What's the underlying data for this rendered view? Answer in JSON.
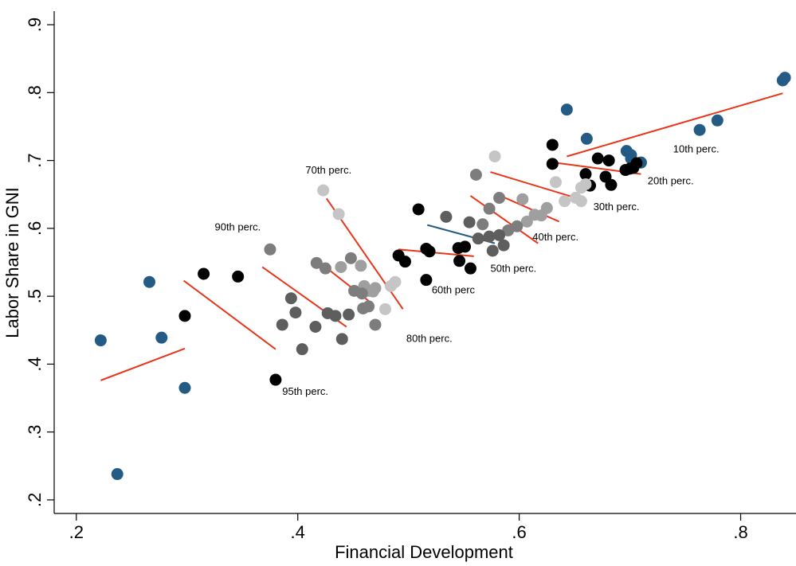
{
  "chart_data": {
    "type": "scatter",
    "title": "",
    "xlabel": "Financial Development",
    "ylabel": "Labor Share in GNI",
    "xlim": [
      0.18,
      0.85
    ],
    "ylim": [
      0.18,
      0.92
    ],
    "xticks": [
      0.2,
      0.4,
      0.6,
      0.8
    ],
    "xtick_labels": [
      ".2",
      ".4",
      ".6",
      ".8"
    ],
    "yticks": [
      0.2,
      0.3,
      0.4,
      0.5,
      0.6,
      0.7,
      0.8,
      0.9
    ],
    "ytick_labels": [
      ".2",
      ".3",
      ".4",
      ".5",
      ".6",
      ".7",
      ".8",
      ".9"
    ],
    "grid": false,
    "legend": "none",
    "colors": {
      "blue": "#245b85",
      "black": "#000000",
      "dark_gray": "#4a4a4a",
      "mid_gray": "#5e5e5e",
      "gray": "#7d7d7d",
      "light_gray": "#9f9f9f",
      "pale_gray": "#c5c5c5",
      "fit_line": "#e8361a"
    },
    "series": [
      {
        "group": "10th perc.",
        "color": "blue",
        "points": [
          [
            0.222,
            0.435
          ],
          [
            0.266,
            0.521
          ],
          [
            0.277,
            0.439
          ],
          [
            0.298,
            0.365
          ],
          [
            0.237,
            0.238
          ],
          [
            0.643,
            0.775
          ],
          [
            0.661,
            0.732
          ],
          [
            0.697,
            0.714
          ],
          [
            0.701,
            0.708
          ],
          [
            0.701,
            0.703
          ],
          [
            0.71,
            0.697
          ],
          [
            0.763,
            0.745
          ],
          [
            0.779,
            0.759
          ],
          [
            0.838,
            0.818
          ],
          [
            0.84,
            0.822
          ]
        ],
        "fit": [
          [
            0.222,
            0.376
          ],
          [
            0.298,
            0.423
          ],
          [
            0.643,
            0.706
          ],
          [
            0.838,
            0.799
          ]
        ]
      },
      {
        "group": "20th perc.",
        "color": "black",
        "points": [
          [
            0.298,
            0.471
          ],
          [
            0.315,
            0.533
          ],
          [
            0.346,
            0.529
          ],
          [
            0.38,
            0.377
          ],
          [
            0.63,
            0.723
          ],
          [
            0.63,
            0.695
          ],
          [
            0.66,
            0.68
          ],
          [
            0.664,
            0.663
          ],
          [
            0.671,
            0.703
          ],
          [
            0.678,
            0.676
          ],
          [
            0.681,
            0.7
          ],
          [
            0.683,
            0.664
          ],
          [
            0.696,
            0.686
          ],
          [
            0.7,
            0.688
          ],
          [
            0.703,
            0.689
          ],
          [
            0.706,
            0.696
          ]
        ],
        "fit": [
          [
            0.297,
            0.523
          ],
          [
            0.38,
            0.422
          ],
          [
            0.631,
            0.697
          ],
          [
            0.71,
            0.68
          ]
        ]
      },
      {
        "group": "30th perc.",
        "color": "pale_gray",
        "points": [
          [
            0.423,
            0.656
          ],
          [
            0.437,
            0.621
          ],
          [
            0.479,
            0.481
          ],
          [
            0.484,
            0.515
          ],
          [
            0.488,
            0.521
          ],
          [
            0.578,
            0.706
          ],
          [
            0.633,
            0.668
          ],
          [
            0.641,
            0.64
          ],
          [
            0.651,
            0.645
          ],
          [
            0.656,
            0.64
          ],
          [
            0.656,
            0.66
          ],
          [
            0.66,
            0.665
          ]
        ],
        "fit": [
          [
            0.426,
            0.644
          ],
          [
            0.495,
            0.481
          ],
          [
            0.574,
            0.683
          ],
          [
            0.655,
            0.643
          ]
        ]
      },
      {
        "group": "40th perc.",
        "color": "light_gray",
        "points": [
          [
            0.439,
            0.543
          ],
          [
            0.457,
            0.545
          ],
          [
            0.46,
            0.515
          ],
          [
            0.464,
            0.508
          ],
          [
            0.468,
            0.507
          ],
          [
            0.47,
            0.512
          ],
          [
            0.603,
            0.643
          ],
          [
            0.607,
            0.61
          ],
          [
            0.614,
            0.62
          ],
          [
            0.62,
            0.619
          ],
          [
            0.625,
            0.63
          ]
        ],
        "fit": [
          [
            0.418,
            0.552
          ],
          [
            0.468,
            0.488
          ],
          [
            0.583,
            0.648
          ],
          [
            0.636,
            0.61
          ]
        ]
      },
      {
        "group": "50th perc.",
        "color": "gray",
        "points": [
          [
            0.375,
            0.569
          ],
          [
            0.417,
            0.549
          ],
          [
            0.425,
            0.541
          ],
          [
            0.448,
            0.556
          ],
          [
            0.451,
            0.508
          ],
          [
            0.458,
            0.504
          ],
          [
            0.459,
            0.482
          ],
          [
            0.464,
            0.485
          ],
          [
            0.47,
            0.458
          ],
          [
            0.561,
            0.679
          ],
          [
            0.567,
            0.606
          ],
          [
            0.573,
            0.629
          ],
          [
            0.582,
            0.645
          ],
          [
            0.59,
            0.597
          ],
          [
            0.598,
            0.603
          ]
        ],
        "fit": [
          [
            0.368,
            0.543
          ],
          [
            0.444,
            0.455
          ],
          [
            0.556,
            0.648
          ],
          [
            0.617,
            0.578
          ]
        ]
      },
      {
        "group": "60th perc",
        "color": "mid_gray",
        "points": [
          [
            0.386,
            0.458
          ],
          [
            0.394,
            0.497
          ],
          [
            0.398,
            0.476
          ],
          [
            0.404,
            0.422
          ],
          [
            0.416,
            0.455
          ],
          [
            0.427,
            0.475
          ],
          [
            0.434,
            0.471
          ],
          [
            0.44,
            0.437
          ],
          [
            0.446,
            0.473
          ],
          [
            0.534,
            0.617
          ],
          [
            0.555,
            0.609
          ],
          [
            0.563,
            0.585
          ],
          [
            0.573,
            0.588
          ],
          [
            0.576,
            0.567
          ],
          [
            0.582,
            0.59
          ],
          [
            0.586,
            0.575
          ]
        ],
        "fit": [
          [
            0.517,
            0.605
          ],
          [
            0.578,
            0.578
          ]
        ]
      },
      {
        "group": "70th perc.",
        "color": "black",
        "points": [
          [
            0.491,
            0.56
          ],
          [
            0.497,
            0.551
          ],
          [
            0.509,
            0.628
          ],
          [
            0.516,
            0.57
          ],
          [
            0.516,
            0.524
          ],
          [
            0.519,
            0.566
          ],
          [
            0.545,
            0.571
          ],
          [
            0.546,
            0.552
          ],
          [
            0.551,
            0.573
          ],
          [
            0.556,
            0.541
          ]
        ],
        "fit": [
          [
            0.491,
            0.569
          ],
          [
            0.559,
            0.559
          ]
        ]
      }
    ],
    "annotations": [
      {
        "text": "10th perc.",
        "x": 0.739,
        "y": 0.712
      },
      {
        "text": "20th perc.",
        "x": 0.716,
        "y": 0.665
      },
      {
        "text": "30th perc.",
        "x": 0.667,
        "y": 0.627
      },
      {
        "text": "40th perc.",
        "x": 0.612,
        "y": 0.582
      },
      {
        "text": "50th perc.",
        "x": 0.574,
        "y": 0.536
      },
      {
        "text": "60th perc",
        "x": 0.521,
        "y": 0.504
      },
      {
        "text": "70th perc.",
        "x": 0.407,
        "y": 0.681
      },
      {
        "text": "80th perc.",
        "x": 0.498,
        "y": 0.433
      },
      {
        "text": "90th perc.",
        "x": 0.325,
        "y": 0.597
      },
      {
        "text": "95th perc.",
        "x": 0.386,
        "y": 0.355
      }
    ]
  }
}
